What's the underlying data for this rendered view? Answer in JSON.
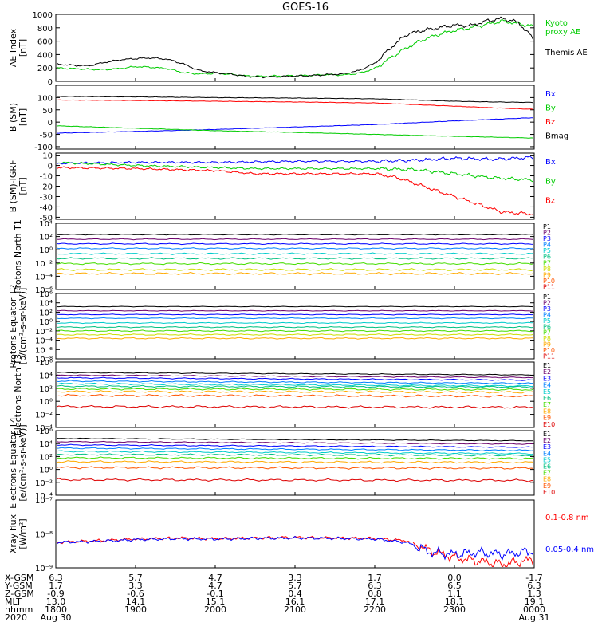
{
  "title": "GOES-16",
  "time_axis": {
    "year": "2020",
    "rows": [
      {
        "label": "X-GSM",
        "values": [
          "6.3",
          "5.7",
          "4.7",
          "3.3",
          "1.7",
          "0.0",
          "-1.7"
        ]
      },
      {
        "label": "Y-GSM",
        "values": [
          "1.7",
          "3.3",
          "4.7",
          "5.7",
          "6.3",
          "6.5",
          "6.3"
        ]
      },
      {
        "label": "Z-GSM",
        "values": [
          "-0.9",
          "-0.6",
          "-0.1",
          "0.4",
          "0.8",
          "1.1",
          "1.3"
        ]
      },
      {
        "label": "MLT",
        "values": [
          "13.0",
          "14.1",
          "15.1",
          "16.1",
          "17.1",
          "18.1",
          "19.1"
        ]
      },
      {
        "label": "hhmm",
        "values": [
          "1800",
          "1900",
          "2000",
          "2100",
          "2200",
          "2300",
          "0000"
        ]
      }
    ],
    "dates": [
      {
        "value": "Aug 30",
        "index": 0
      },
      {
        "value": "Aug 31",
        "index": 6
      }
    ]
  },
  "colors": {
    "black": "#000000",
    "green": "#00cc00",
    "blue": "#0000ff",
    "red": "#ff0000",
    "ch": [
      "#000000",
      "#6b006b",
      "#0000ff",
      "#0080ff",
      "#00cccc",
      "#00c080",
      "#44dd00",
      "#ccdd00",
      "#ffaa00",
      "#ff5500",
      "#dd0000"
    ]
  },
  "chart_data": [
    {
      "type": "line",
      "ylabel": "AE Index [nT]",
      "ylim": [
        0,
        1000
      ],
      "yticks": [
        "0",
        "200",
        "400",
        "600",
        "800",
        "1000"
      ],
      "x_range": [
        "1800",
        "0000"
      ],
      "series": [
        {
          "name": "Kyoto proxy AE",
          "name_lines": [
            "Kyoto",
            "proxy AE"
          ],
          "color": "green",
          "x": [
            0,
            0.2,
            0.4,
            0.6,
            0.8,
            1.0,
            1.2,
            1.4,
            1.6,
            1.8,
            2.0,
            2.2,
            2.4,
            2.6,
            2.8,
            3.0,
            3.2,
            3.4,
            3.6,
            3.8,
            4.0,
            4.2,
            4.4,
            4.6,
            4.8,
            5.0,
            5.2,
            5.4,
            5.6,
            5.8,
            6.0
          ],
          "y": [
            200,
            190,
            180,
            175,
            190,
            220,
            210,
            190,
            130,
            110,
            120,
            105,
            80,
            75,
            80,
            85,
            90,
            100,
            95,
            120,
            190,
            350,
            500,
            620,
            700,
            760,
            800,
            850,
            900,
            860,
            820
          ]
        },
        {
          "name": "Themis AE",
          "name_lines": [
            "Themis AE"
          ],
          "color": "black",
          "x": [
            0,
            0.2,
            0.4,
            0.6,
            0.8,
            1.0,
            1.2,
            1.4,
            1.6,
            1.8,
            2.0,
            2.2,
            2.4,
            2.6,
            2.8,
            3.0,
            3.2,
            3.4,
            3.6,
            3.8,
            4.0,
            4.2,
            4.4,
            4.6,
            4.8,
            5.0,
            5.2,
            5.4,
            5.6,
            5.8,
            6.0
          ],
          "y": [
            260,
            240,
            230,
            280,
            320,
            340,
            350,
            330,
            260,
            160,
            130,
            110,
            70,
            65,
            70,
            80,
            85,
            100,
            110,
            160,
            270,
            500,
            700,
            760,
            800,
            840,
            830,
            900,
            940,
            880,
            620
          ]
        }
      ]
    },
    {
      "type": "line",
      "ylabel": "B (SM) [nT]",
      "ylim": [
        -110,
        150
      ],
      "yticks": [
        "-100",
        "-50",
        "0",
        "50",
        "100"
      ],
      "series": [
        {
          "name": "Bx",
          "color": "blue",
          "x": [
            0,
            1,
            2,
            3,
            4,
            5,
            6
          ],
          "y": [
            -45,
            -38,
            -30,
            -20,
            -10,
            5,
            18
          ]
        },
        {
          "name": "By",
          "color": "green",
          "x": [
            0,
            1,
            2,
            3,
            4,
            5,
            6
          ],
          "y": [
            -15,
            -25,
            -35,
            -42,
            -50,
            -58,
            -65
          ]
        },
        {
          "name": "Bz",
          "color": "red",
          "x": [
            0,
            1,
            2,
            3,
            4,
            5,
            5.5,
            6
          ],
          "y": [
            90,
            88,
            85,
            82,
            78,
            65,
            58,
            52
          ]
        },
        {
          "name": "Bmag",
          "color": "black",
          "x": [
            0,
            1,
            2,
            3,
            4,
            5,
            5.5,
            6
          ],
          "y": [
            105,
            103,
            100,
            98,
            95,
            85,
            82,
            80
          ]
        }
      ]
    },
    {
      "type": "line",
      "ylabel": "B (SM)-IGRF [nT]",
      "ylim": [
        -52,
        12
      ],
      "yticks": [
        "-50",
        "-40",
        "-30",
        "-20",
        "-10",
        "0",
        "10"
      ],
      "series": [
        {
          "name": "Bx",
          "color": "blue",
          "x": [
            0,
            1,
            2,
            3,
            4,
            4.5,
            5,
            5.5,
            6
          ],
          "y": [
            2,
            3,
            3,
            4,
            4,
            5,
            7,
            6,
            8
          ]
        },
        {
          "name": "By",
          "color": "green",
          "x": [
            0,
            1,
            2,
            2.5,
            3,
            4,
            4.5,
            5,
            5.5,
            6
          ],
          "y": [
            3,
            0,
            -2,
            -3,
            -3,
            -3,
            -4,
            -8,
            -12,
            -14
          ]
        },
        {
          "name": "Bz",
          "color": "red",
          "x": [
            0,
            1,
            2,
            2.5,
            3,
            4,
            4.3,
            4.8,
            5.2,
            5.6,
            6
          ],
          "y": [
            -2,
            -3,
            -5,
            -8,
            -8,
            -8,
            -12,
            -25,
            -35,
            -45,
            -47
          ]
        }
      ]
    },
    {
      "type": "line",
      "ylabel": "Protons North T1",
      "ylim": [
        -6,
        4
      ],
      "log_scale": true,
      "ytick_exps": [
        -6,
        -4,
        -2,
        0,
        2,
        4
      ],
      "series": [
        {
          "name": "P1",
          "color_index": 0,
          "y": 2.3
        },
        {
          "name": "P2",
          "color_index": 1,
          "y": 1.6
        },
        {
          "name": "P3",
          "color_index": 2,
          "y": 0.9
        },
        {
          "name": "P4",
          "color_index": 3,
          "y": 0.2
        },
        {
          "name": "P5",
          "color_index": 4,
          "y": -0.6
        },
        {
          "name": "P6",
          "color_index": 5,
          "y": -1.3
        },
        {
          "name": "P7",
          "color_index": 6,
          "y": -2.1
        },
        {
          "name": "P8",
          "color_index": 7,
          "y": -3.0
        },
        {
          "name": "P9",
          "color_index": 8,
          "y": -3.6
        },
        {
          "name": "P10",
          "color_index": 9
        },
        {
          "name": "P11",
          "color_index": 10
        }
      ]
    },
    {
      "type": "line",
      "ylabel": "Protons Equator T2 [p/(cm²-s-sr-keV)]",
      "ylim": [
        -8,
        6
      ],
      "log_scale": true,
      "ytick_exps": [
        -8,
        -6,
        -4,
        -2,
        0,
        2,
        4,
        6
      ],
      "series": [
        {
          "name": "P1",
          "color_index": 0,
          "y": 3.2
        },
        {
          "name": "P2",
          "color_index": 1,
          "y": 2.3
        },
        {
          "name": "P3",
          "color_index": 2,
          "y": 1.5
        },
        {
          "name": "P4",
          "color_index": 3,
          "y": 0.7
        },
        {
          "name": "P5",
          "color_index": 4,
          "y": -0.3
        },
        {
          "name": "P6",
          "color_index": 5,
          "y": -1.2
        },
        {
          "name": "P7",
          "color_index": 6,
          "y": -2.0
        },
        {
          "name": "P8",
          "color_index": 7,
          "y": -2.8
        },
        {
          "name": "P9",
          "color_index": 8,
          "y": -3.6
        },
        {
          "name": "P10",
          "color_index": 9
        },
        {
          "name": "P11",
          "color_index": 10
        }
      ]
    },
    {
      "type": "line",
      "ylabel": "Electrons North T3",
      "ylim": [
        -4,
        6
      ],
      "log_scale": true,
      "ytick_exps": [
        -4,
        -2,
        0,
        2,
        4,
        6
      ],
      "series": [
        {
          "name": "E1",
          "color_index": 0,
          "y": 4.4
        },
        {
          "name": "E2",
          "color_index": 1,
          "y": 4.0
        },
        {
          "name": "E3",
          "color_index": 2,
          "y": 3.6
        },
        {
          "name": "E4",
          "color_index": 3,
          "y": 3.1
        },
        {
          "name": "E5",
          "color_index": 4,
          "y": 2.7
        },
        {
          "name": "E6",
          "color_index": 5,
          "y": 2.3
        },
        {
          "name": "E7",
          "color_index": 6,
          "y": 1.9
        },
        {
          "name": "E8",
          "color_index": 8,
          "y": 1.5
        },
        {
          "name": "E9",
          "color_index": 9,
          "y": 0.9
        },
        {
          "name": "E10",
          "color_index": 10,
          "y": -0.8
        }
      ]
    },
    {
      "type": "line",
      "ylabel": "Electrons Equator T4 [e/(cm²-s-sr-keV)]",
      "ylim": [
        -4,
        6
      ],
      "log_scale": true,
      "ytick_exps": [
        -4,
        -2,
        0,
        2,
        4,
        6
      ],
      "series": [
        {
          "name": "E1",
          "color_index": 0,
          "y": 4.8
        },
        {
          "name": "E2",
          "color_index": 1,
          "y": 4.3
        },
        {
          "name": "E3",
          "color_index": 2,
          "y": 3.8
        },
        {
          "name": "E4",
          "color_index": 3,
          "y": 3.3
        },
        {
          "name": "E5",
          "color_index": 4,
          "y": 2.8
        },
        {
          "name": "E6",
          "color_index": 5,
          "y": 2.3
        },
        {
          "name": "E7",
          "color_index": 6,
          "y": 1.8
        },
        {
          "name": "E8",
          "color_index": 8,
          "y": 1.2
        },
        {
          "name": "E9",
          "color_index": 9,
          "y": 0.3
        },
        {
          "name": "E10",
          "color_index": 10,
          "y": -1.6
        }
      ]
    },
    {
      "type": "line",
      "ylabel": "Xray flux [W/m²]",
      "ylim": [
        -9,
        -7
      ],
      "log_scale": true,
      "ytick_exps": [
        -9,
        -8,
        -7
      ],
      "series": [
        {
          "name": "0.1-0.8 nm",
          "color": "red",
          "x": [
            0,
            0.5,
            1,
            1.5,
            2,
            2.5,
            3,
            3.5,
            4,
            4.4,
            4.7,
            5.0,
            5.3,
            5.6,
            6
          ],
          "y": [
            -8.25,
            -8.2,
            -8.15,
            -8.12,
            -8.14,
            -8.12,
            -8.1,
            -8.12,
            -8.13,
            -8.2,
            -8.5,
            -8.7,
            -8.8,
            -8.9,
            -8.75
          ]
        },
        {
          "name": "0.05-0.4 nm",
          "color": "blue",
          "x": [
            0,
            0.5,
            1,
            1.5,
            2,
            2.5,
            3,
            3.5,
            4,
            4.4,
            4.7,
            5.0,
            5.3,
            5.6,
            6
          ],
          "y": [
            -8.25,
            -8.22,
            -8.17,
            -8.14,
            -8.15,
            -8.13,
            -8.12,
            -8.13,
            -8.15,
            -8.25,
            -8.55,
            -8.6,
            -8.55,
            -8.6,
            -8.5
          ]
        }
      ]
    }
  ]
}
